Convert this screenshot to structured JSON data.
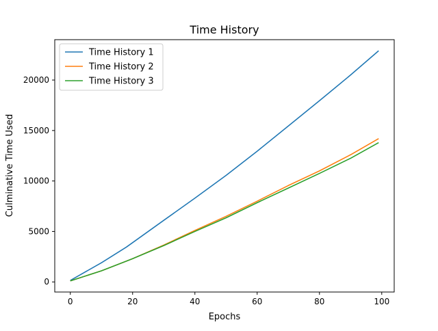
{
  "chart_data": {
    "type": "line",
    "title": "Time History",
    "xlabel": "Epochs",
    "ylabel": "Culminative Time Used",
    "xlim": [
      -5,
      104
    ],
    "ylim": [
      -1000,
      24000
    ],
    "xticks": [
      0,
      20,
      40,
      60,
      80,
      100
    ],
    "yticks": [
      0,
      5000,
      10000,
      15000,
      20000
    ],
    "grid": false,
    "legend_position": "upper-left",
    "series": [
      {
        "name": "Time History 1",
        "color": "#1f77b4",
        "x": [
          0,
          10,
          18,
          30,
          40,
          50,
          60,
          70,
          80,
          90,
          99
        ],
        "y": [
          150,
          1900,
          3450,
          6100,
          8300,
          10550,
          12950,
          15450,
          17950,
          20500,
          22900
        ]
      },
      {
        "name": "Time History 2",
        "color": "#ff7f0e",
        "x": [
          0,
          10,
          20,
          30,
          40,
          50,
          60,
          70,
          80,
          90,
          99
        ],
        "y": [
          100,
          1100,
          2300,
          3650,
          5100,
          6500,
          8000,
          9550,
          11000,
          12600,
          14200
        ]
      },
      {
        "name": "Time History 3",
        "color": "#2ca02c",
        "x": [
          0,
          10,
          20,
          30,
          40,
          50,
          60,
          70,
          80,
          90,
          99
        ],
        "y": [
          100,
          1100,
          2300,
          3600,
          5000,
          6350,
          7850,
          9300,
          10750,
          12250,
          13800
        ]
      }
    ]
  }
}
